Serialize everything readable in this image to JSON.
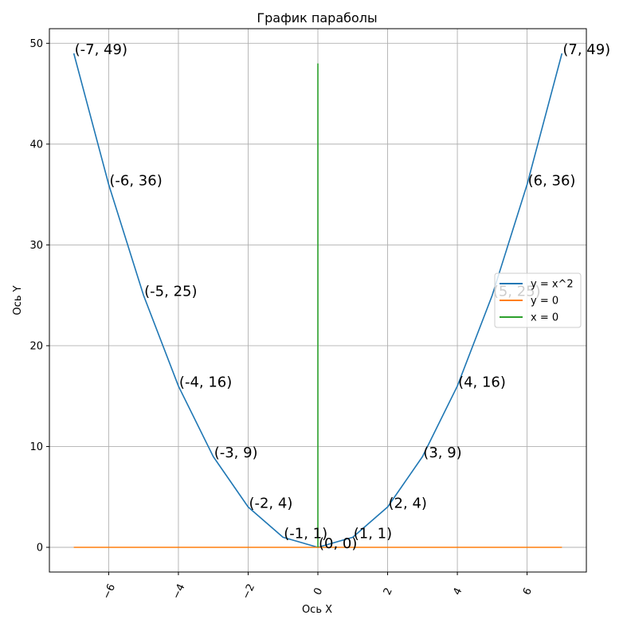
{
  "chart_data": {
    "type": "line",
    "title": "График параболы",
    "xlabel": "Ось X",
    "ylabel": "Ось Y",
    "xlim": [
      -7.7,
      7.7
    ],
    "ylim": [
      -2.45,
      51.45
    ],
    "xticks": [
      -6,
      -4,
      -2,
      0,
      2,
      4,
      6
    ],
    "xtick_labels": [
      "−6",
      "−4",
      "−2",
      "0",
      "2",
      "4",
      "6"
    ],
    "yticks": [
      0,
      10,
      20,
      30,
      40,
      50
    ],
    "ytick_labels": [
      "0",
      "10",
      "20",
      "30",
      "40",
      "50"
    ],
    "grid": true,
    "legend_position": "right",
    "series": [
      {
        "name": "y = x^2",
        "color": "#1f77b4",
        "x": [
          -7,
          -6,
          -5,
          -4,
          -3,
          -2,
          -1,
          0,
          1,
          2,
          3,
          4,
          5,
          6,
          7
        ],
        "y": [
          49,
          36,
          25,
          16,
          9,
          4,
          1,
          0,
          1,
          4,
          9,
          16,
          25,
          36,
          49
        ]
      },
      {
        "name": "y = 0",
        "color": "#ff7f0e",
        "x": [
          -7,
          7
        ],
        "y": [
          0,
          0
        ]
      },
      {
        "name": "x = 0",
        "color": "#2ca02c",
        "x": [
          0,
          0
        ],
        "y": [
          0,
          48
        ]
      }
    ],
    "annotations": [
      {
        "x": -7,
        "y": 49,
        "text": "(-7, 49)"
      },
      {
        "x": -6,
        "y": 36,
        "text": "(-6, 36)"
      },
      {
        "x": -5,
        "y": 25,
        "text": "(-5, 25)"
      },
      {
        "x": -4,
        "y": 16,
        "text": "(-4, 16)"
      },
      {
        "x": -3,
        "y": 9,
        "text": "(-3, 9)"
      },
      {
        "x": -2,
        "y": 4,
        "text": "(-2, 4)"
      },
      {
        "x": -1,
        "y": 1,
        "text": "(-1, 1)"
      },
      {
        "x": 0,
        "y": 0,
        "text": "(0, 0)"
      },
      {
        "x": 1,
        "y": 1,
        "text": "(1, 1)"
      },
      {
        "x": 2,
        "y": 4,
        "text": "(2, 4)"
      },
      {
        "x": 3,
        "y": 9,
        "text": "(3, 9)"
      },
      {
        "x": 4,
        "y": 16,
        "text": "(4, 16)"
      },
      {
        "x": 5,
        "y": 25,
        "text": "(5, 25)"
      },
      {
        "x": 6,
        "y": 36,
        "text": "(6, 36)"
      },
      {
        "x": 7,
        "y": 49,
        "text": "(7, 49)"
      }
    ]
  }
}
